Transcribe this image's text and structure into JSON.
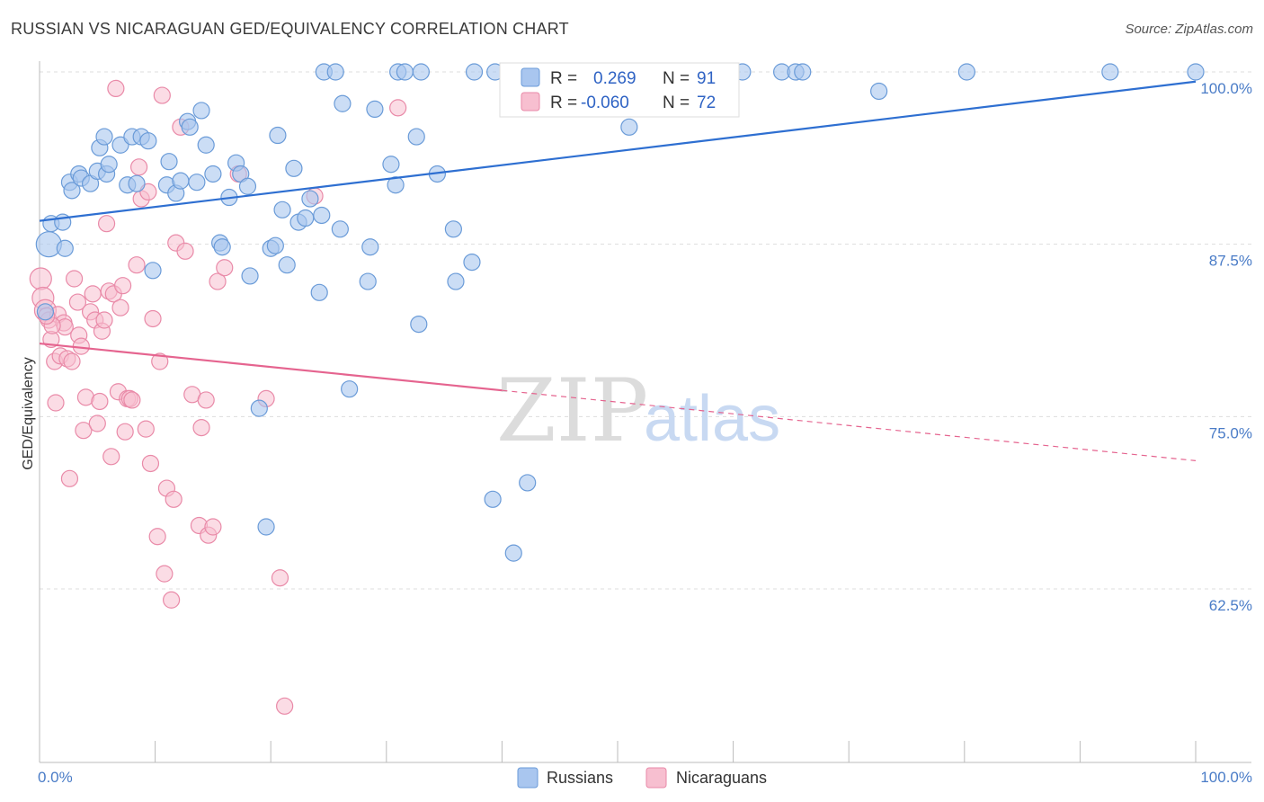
{
  "title": "RUSSIAN VS NICARAGUAN GED/EQUIVALENCY CORRELATION CHART",
  "source": "Source: ZipAtlas.com",
  "watermark": {
    "zip": "ZIP",
    "atlas": "atlas"
  },
  "colors": {
    "russians_fill": "#a9c6ef",
    "russians_stroke": "#6a9bd8",
    "russians_line": "#2e6fd1",
    "nicaraguans_fill": "#f7bfd0",
    "nicaraguans_stroke": "#e98aa8",
    "nicaraguans_line": "#e5648f",
    "grid": "#dddddd",
    "label_blue": "#4a7cc7"
  },
  "legend": {
    "r1_label": "R = ",
    "r1_value": "0.269",
    "n1_label": "N = ",
    "n1_value": "91",
    "r2_label": "R = ",
    "r2_value": "-0.060",
    "n2_label": "N = ",
    "n2_value": "72"
  },
  "bottom_legend": {
    "series1": "Russians",
    "series2": "Nicaraguans"
  },
  "chart_data": {
    "type": "scatter",
    "ylabel": "GED/Equivalency",
    "xlabel": "",
    "xlim": [
      0,
      100
    ],
    "ylim": [
      50,
      100
    ],
    "x_tick_labels": [
      "0.0%",
      "100.0%"
    ],
    "y_tick_labels": [
      "100.0%",
      "87.5%",
      "75.0%",
      "62.5%"
    ],
    "y_ticks": [
      100,
      87.5,
      75,
      62.5
    ],
    "grid": true,
    "series": [
      {
        "name": "Russians",
        "trend": {
          "x0": 0,
          "y0": 89.2,
          "x1": 100,
          "y1": 99.3
        },
        "points": [
          [
            0.8,
            87.5
          ],
          [
            1.0,
            89.0
          ],
          [
            2.0,
            89.1
          ],
          [
            2.2,
            87.2
          ],
          [
            2.6,
            92.0
          ],
          [
            2.8,
            91.4
          ],
          [
            3.4,
            92.6
          ],
          [
            3.6,
            92.3
          ],
          [
            4.4,
            91.9
          ],
          [
            5.0,
            92.8
          ],
          [
            5.2,
            94.5
          ],
          [
            5.6,
            95.3
          ],
          [
            5.8,
            92.6
          ],
          [
            6.0,
            93.3
          ],
          [
            7.0,
            94.7
          ],
          [
            7.6,
            91.8
          ],
          [
            8.0,
            95.3
          ],
          [
            8.4,
            91.9
          ],
          [
            8.8,
            95.3
          ],
          [
            9.4,
            95.0
          ],
          [
            9.8,
            85.6
          ],
          [
            11.0,
            91.8
          ],
          [
            11.2,
            93.5
          ],
          [
            11.8,
            91.2
          ],
          [
            12.2,
            92.1
          ],
          [
            12.8,
            96.4
          ],
          [
            13.0,
            96.0
          ],
          [
            13.6,
            92.0
          ],
          [
            14.0,
            97.2
          ],
          [
            14.4,
            94.7
          ],
          [
            15.0,
            92.6
          ],
          [
            15.6,
            87.6
          ],
          [
            15.8,
            87.3
          ],
          [
            16.4,
            90.9
          ],
          [
            17.0,
            93.4
          ],
          [
            17.4,
            92.6
          ],
          [
            18.0,
            91.7
          ],
          [
            18.2,
            85.2
          ],
          [
            19.0,
            75.6
          ],
          [
            19.6,
            67.0
          ],
          [
            20.0,
            87.2
          ],
          [
            20.4,
            87.4
          ],
          [
            20.6,
            95.4
          ],
          [
            21.0,
            90.0
          ],
          [
            21.4,
            86.0
          ],
          [
            22.0,
            93.0
          ],
          [
            22.4,
            89.1
          ],
          [
            23.0,
            89.4
          ],
          [
            23.4,
            90.8
          ],
          [
            24.4,
            89.6
          ],
          [
            24.2,
            84.0
          ],
          [
            24.6,
            100.0
          ],
          [
            25.6,
            100.0
          ],
          [
            26.0,
            88.6
          ],
          [
            26.2,
            97.7
          ],
          [
            26.8,
            77.0
          ],
          [
            28.6,
            87.3
          ],
          [
            28.4,
            84.8
          ],
          [
            29.0,
            97.3
          ],
          [
            30.4,
            93.3
          ],
          [
            30.8,
            91.8
          ],
          [
            31.0,
            100.0
          ],
          [
            31.6,
            100.0
          ],
          [
            32.6,
            95.3
          ],
          [
            32.8,
            81.7
          ],
          [
            33.0,
            100.0
          ],
          [
            34.4,
            92.6
          ],
          [
            35.8,
            88.6
          ],
          [
            36.0,
            84.8
          ],
          [
            37.4,
            86.2
          ],
          [
            37.6,
            100.0
          ],
          [
            39.2,
            69.0
          ],
          [
            39.4,
            100.0
          ],
          [
            41.0,
            65.1
          ],
          [
            41.4,
            100.0
          ],
          [
            42.2,
            70.2
          ],
          [
            47.6,
            100.0
          ],
          [
            48.6,
            100.0
          ],
          [
            49.0,
            100.0
          ],
          [
            50.4,
            100.0
          ],
          [
            51.0,
            96.0
          ],
          [
            59.2,
            100.0
          ],
          [
            60.8,
            100.0
          ],
          [
            64.2,
            100.0
          ],
          [
            65.4,
            100.0
          ],
          [
            66.0,
            100.0
          ],
          [
            72.6,
            98.6
          ],
          [
            80.2,
            100.0
          ],
          [
            92.6,
            100.0
          ],
          [
            100.0,
            100.0
          ],
          [
            0.5,
            82.6
          ]
        ]
      },
      {
        "name": "Nicaraguans",
        "trend": {
          "x0": 0,
          "y0": 80.3,
          "x1": 40.0,
          "y1": 76.9,
          "dash_x1": 100,
          "dash_y1": 71.8
        },
        "points": [
          [
            0.1,
            85.0
          ],
          [
            0.3,
            83.6
          ],
          [
            0.5,
            82.7
          ],
          [
            0.8,
            82.0
          ],
          [
            1.0,
            80.6
          ],
          [
            1.3,
            79.0
          ],
          [
            1.4,
            76.0
          ],
          [
            1.6,
            82.4
          ],
          [
            1.8,
            79.4
          ],
          [
            2.1,
            81.8
          ],
          [
            2.2,
            81.5
          ],
          [
            2.4,
            79.2
          ],
          [
            2.6,
            70.5
          ],
          [
            2.8,
            79.0
          ],
          [
            3.0,
            85.0
          ],
          [
            3.3,
            83.3
          ],
          [
            3.4,
            80.9
          ],
          [
            3.6,
            80.1
          ],
          [
            3.8,
            74.0
          ],
          [
            4.0,
            76.4
          ],
          [
            4.4,
            82.6
          ],
          [
            4.6,
            83.9
          ],
          [
            4.8,
            82.0
          ],
          [
            5.0,
            74.5
          ],
          [
            5.2,
            76.1
          ],
          [
            5.4,
            81.2
          ],
          [
            5.6,
            82.0
          ],
          [
            5.8,
            89.0
          ],
          [
            6.0,
            84.1
          ],
          [
            6.2,
            72.1
          ],
          [
            6.4,
            83.9
          ],
          [
            6.6,
            98.8
          ],
          [
            6.8,
            76.8
          ],
          [
            7.0,
            82.9
          ],
          [
            7.2,
            84.5
          ],
          [
            7.4,
            73.9
          ],
          [
            7.6,
            76.3
          ],
          [
            7.8,
            76.3
          ],
          [
            8.0,
            76.2
          ],
          [
            8.4,
            86.0
          ],
          [
            8.6,
            93.1
          ],
          [
            8.8,
            90.8
          ],
          [
            9.2,
            74.1
          ],
          [
            9.4,
            91.3
          ],
          [
            9.6,
            71.6
          ],
          [
            9.8,
            82.1
          ],
          [
            10.2,
            66.3
          ],
          [
            10.4,
            79.0
          ],
          [
            10.6,
            98.3
          ],
          [
            10.8,
            63.6
          ],
          [
            11.0,
            69.8
          ],
          [
            11.4,
            61.7
          ],
          [
            11.6,
            69.0
          ],
          [
            11.8,
            87.6
          ],
          [
            12.2,
            96.0
          ],
          [
            12.6,
            87.0
          ],
          [
            13.2,
            76.6
          ],
          [
            13.8,
            67.1
          ],
          [
            14.0,
            74.2
          ],
          [
            14.4,
            76.2
          ],
          [
            14.6,
            66.4
          ],
          [
            15.0,
            67.0
          ],
          [
            15.4,
            84.8
          ],
          [
            16.0,
            85.8
          ],
          [
            17.2,
            92.6
          ],
          [
            19.6,
            76.3
          ],
          [
            20.8,
            63.3
          ],
          [
            21.2,
            54.0
          ],
          [
            23.8,
            91.0
          ],
          [
            31.0,
            97.4
          ],
          [
            1.1,
            81.6
          ],
          [
            0.6,
            82.3
          ]
        ]
      }
    ]
  }
}
